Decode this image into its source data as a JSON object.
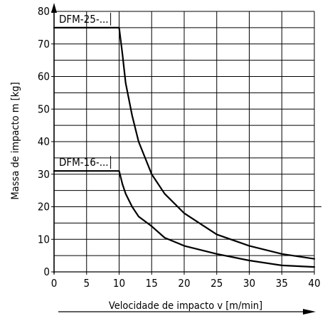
{
  "chart_data": {
    "type": "line",
    "xlabel": "Velocidade de impacto v [m/min]",
    "ylabel": "Massa de impacto m [kg]",
    "xlim": [
      0,
      40
    ],
    "ylim": [
      0,
      80
    ],
    "x_ticks": [
      0,
      5,
      10,
      15,
      20,
      25,
      30,
      35,
      40
    ],
    "y_ticks": [
      0,
      10,
      20,
      30,
      40,
      50,
      60,
      70,
      80
    ],
    "grid": true,
    "series": [
      {
        "name": "DFM-25-...",
        "x": [
          0,
          10,
          10.5,
          11,
          12,
          13,
          14,
          15,
          17,
          20,
          25,
          30,
          35,
          40
        ],
        "y": [
          75,
          75,
          67,
          58,
          48,
          40,
          35,
          30,
          24,
          18,
          11.5,
          8,
          5.5,
          4
        ]
      },
      {
        "name": "DFM-16-...",
        "x": [
          0,
          10,
          10.5,
          11,
          12,
          13,
          15,
          17,
          20,
          25,
          30,
          35,
          40
        ],
        "y": [
          31,
          31,
          27,
          24,
          20,
          17,
          14,
          10.5,
          8,
          5.5,
          3.5,
          2,
          1.5
        ]
      }
    ]
  }
}
